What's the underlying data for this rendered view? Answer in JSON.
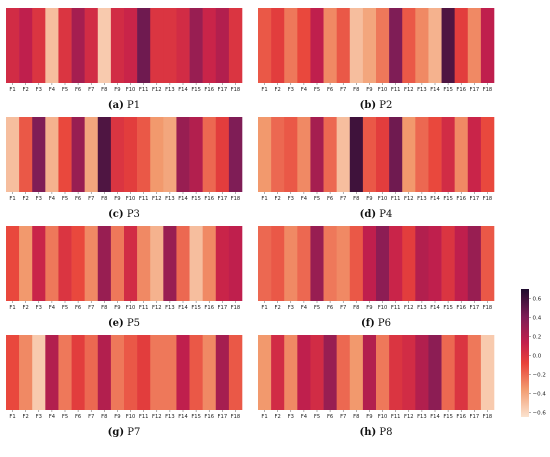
{
  "colors": {
    "scale_min": "#fbe3cf",
    "scale_low": "#f29a6e",
    "scale_mid": "#e8423a",
    "scale_midhigh": "#c31f4c",
    "scale_high": "#7e1d56",
    "scale_max": "#1f0c2e"
  },
  "colorbar": {
    "min": -0.65,
    "max": 0.7,
    "ticks": [
      "0.6",
      "0.4",
      "0.2",
      "0.0",
      "−0.2",
      "−0.4",
      "−0.6"
    ],
    "tick_values": [
      0.6,
      0.4,
      0.2,
      0.0,
      -0.2,
      -0.4,
      -0.6
    ]
  },
  "chart_data": [
    {
      "type": "heatmap",
      "panel": "a",
      "label": "(a)",
      "name": "P1",
      "categories": [
        "F1",
        "F2",
        "F3",
        "F4",
        "F5",
        "F6",
        "F7",
        "F8",
        "F9",
        "F10",
        "F11",
        "F12",
        "F13",
        "F14",
        "F15",
        "F16",
        "F17",
        "F18"
      ],
      "values": [
        0.05,
        0.15,
        0.0,
        -0.5,
        0.0,
        0.25,
        0.05,
        -0.55,
        0.05,
        0.1,
        0.45,
        0.0,
        0.0,
        0.05,
        0.3,
        0.1,
        0.2,
        0.0
      ]
    },
    {
      "type": "heatmap",
      "panel": "b",
      "label": "(b)",
      "name": "P2",
      "categories": [
        "F1",
        "F2",
        "F3",
        "F4",
        "F5",
        "F6",
        "F7",
        "F8",
        "F9",
        "F10",
        "F11",
        "F12",
        "F13",
        "F14",
        "F15",
        "F16",
        "F17",
        "F18"
      ],
      "values": [
        -0.15,
        -0.05,
        -0.25,
        -0.1,
        0.15,
        -0.3,
        -0.15,
        -0.5,
        -0.4,
        -0.25,
        0.4,
        -0.15,
        -0.3,
        -0.45,
        0.55,
        -0.05,
        -0.3,
        0.15
      ]
    },
    {
      "type": "heatmap",
      "panel": "c",
      "label": "(c)",
      "name": "P3",
      "categories": [
        "F1",
        "F2",
        "F3",
        "F4",
        "F5",
        "F6",
        "F7",
        "F8",
        "F9",
        "F10",
        "F11",
        "F12",
        "F13",
        "F14",
        "F15",
        "F16",
        "F17",
        "F18"
      ],
      "values": [
        -0.5,
        -0.15,
        0.4,
        -0.45,
        -0.1,
        0.3,
        -0.4,
        0.55,
        0.0,
        -0.05,
        -0.15,
        -0.35,
        -0.4,
        0.3,
        0.2,
        -0.2,
        -0.05,
        0.4
      ]
    },
    {
      "type": "heatmap",
      "panel": "d",
      "label": "(d)",
      "name": "P4",
      "categories": [
        "F1",
        "F2",
        "F3",
        "F4",
        "F5",
        "F6",
        "F7",
        "F8",
        "F9",
        "F10",
        "F11",
        "F12",
        "F13",
        "F14",
        "F15",
        "F16",
        "F17",
        "F18"
      ],
      "values": [
        -0.35,
        -0.2,
        -0.15,
        -0.3,
        0.25,
        -0.2,
        -0.5,
        0.6,
        -0.15,
        -0.05,
        0.45,
        -0.35,
        -0.2,
        -0.1,
        0.05,
        -0.3,
        0.1,
        -0.1
      ]
    },
    {
      "type": "heatmap",
      "panel": "e",
      "label": "(e)",
      "name": "P5",
      "categories": [
        "F1",
        "F2",
        "F3",
        "F4",
        "F5",
        "F6",
        "F7",
        "F8",
        "F9",
        "F10",
        "F11",
        "F12",
        "F13",
        "F14",
        "F15",
        "F16",
        "F17",
        "F18"
      ],
      "values": [
        -0.1,
        -0.35,
        0.1,
        -0.25,
        0.0,
        -0.1,
        -0.3,
        0.3,
        -0.25,
        0.05,
        -0.3,
        -0.45,
        0.3,
        -0.2,
        -0.5,
        -0.3,
        0.1,
        0.15
      ]
    },
    {
      "type": "heatmap",
      "panel": "f",
      "label": "(f)",
      "name": "P6",
      "categories": [
        "F1",
        "F2",
        "F3",
        "F4",
        "F5",
        "F6",
        "F7",
        "F8",
        "F9",
        "F10",
        "F11",
        "F12",
        "F13",
        "F14",
        "F15",
        "F16",
        "F17",
        "F18"
      ],
      "values": [
        -0.2,
        -0.15,
        -0.3,
        -0.2,
        0.3,
        -0.25,
        -0.3,
        -0.15,
        0.15,
        0.35,
        0.1,
        -0.05,
        0.2,
        0.15,
        0.0,
        0.15,
        0.3,
        -0.15
      ]
    },
    {
      "type": "heatmap",
      "panel": "g",
      "label": "(g)",
      "name": "P7",
      "categories": [
        "F1",
        "F2",
        "F3",
        "F4",
        "F5",
        "F6",
        "F7",
        "F8",
        "F9",
        "F10",
        "F11",
        "F12",
        "F13",
        "F14",
        "F15",
        "F16",
        "F17",
        "F18"
      ],
      "values": [
        -0.1,
        -0.3,
        -0.55,
        0.2,
        -0.25,
        -0.05,
        -0.2,
        0.2,
        -0.25,
        -0.15,
        -0.05,
        -0.25,
        -0.25,
        0.15,
        -0.15,
        -0.3,
        0.25,
        -0.15
      ]
    },
    {
      "type": "heatmap",
      "panel": "h",
      "label": "(h)",
      "name": "P8",
      "categories": [
        "F1",
        "F2",
        "F3",
        "F4",
        "F5",
        "F6",
        "F7",
        "F8",
        "F9",
        "F10",
        "F11",
        "F12",
        "F13",
        "F14",
        "F15",
        "F16",
        "F17",
        "F18"
      ],
      "values": [
        -0.35,
        0.05,
        -0.3,
        0.15,
        0.05,
        0.3,
        -0.2,
        -0.35,
        0.2,
        -0.25,
        0.0,
        0.05,
        0.2,
        0.35,
        -0.2,
        0.0,
        -0.25,
        -0.55
      ]
    }
  ]
}
